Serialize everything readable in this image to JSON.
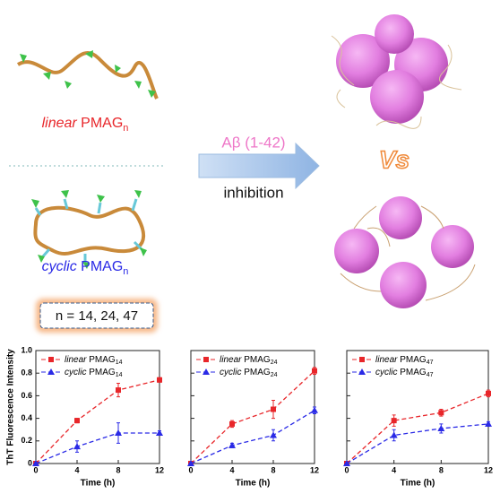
{
  "diagram": {
    "linear_label": {
      "style": "linear",
      "base": "PMAG",
      "sub": "n"
    },
    "cyclic_label": {
      "style": "cyclic",
      "base": "PMAG",
      "sub": "n"
    },
    "n_values": "n = 14, 24, 47",
    "arrow_top": "Aβ (1-42)",
    "arrow_bottom": "inhibition",
    "versus": "Vs"
  },
  "chart_data": [
    {
      "type": "line",
      "xlabel": "Time (h)",
      "ylabel": "ThT Fluorescence Intensity",
      "show_ytick_labels": true,
      "x": [
        0,
        4,
        8,
        12
      ],
      "xlim": [
        0,
        12
      ],
      "xticks": [
        0,
        4,
        8,
        12
      ],
      "ylim": [
        0,
        1
      ],
      "yticks": [
        0,
        0.2,
        0.4,
        0.6,
        0.8,
        {
          "value": 1,
          "label": "1.0"
        }
      ],
      "series": [
        {
          "name": "linear PMAG14",
          "color": "#e8262a",
          "marker": "square",
          "values": [
            0,
            0.38,
            0.65,
            0.74
          ],
          "errors": [
            0,
            0.02,
            0.06,
            0.02
          ]
        },
        {
          "name": "cyclic PMAG14",
          "color": "#2a2ae6",
          "marker": "triangle",
          "values": [
            0,
            0.15,
            0.27,
            0.27
          ],
          "errors": [
            0,
            0.05,
            0.09,
            0.02
          ]
        }
      ]
    },
    {
      "type": "line",
      "xlabel": "Time (h)",
      "show_ytick_labels": false,
      "x": [
        0,
        4,
        8,
        12
      ],
      "xlim": [
        0,
        12
      ],
      "xticks": [
        0,
        4,
        8,
        12
      ],
      "ylim": [
        0,
        1
      ],
      "yticks": [
        0,
        0.2,
        0.4,
        0.6,
        0.8,
        1
      ],
      "series": [
        {
          "name": "linear PMAG24",
          "color": "#e8262a",
          "marker": "square",
          "values": [
            0,
            0.35,
            0.48,
            0.82
          ],
          "errors": [
            0,
            0.03,
            0.08,
            0.03
          ]
        },
        {
          "name": "cyclic PMAG24",
          "color": "#2a2ae6",
          "marker": "triangle",
          "values": [
            0,
            0.16,
            0.25,
            0.47
          ],
          "errors": [
            0,
            0.02,
            0.05,
            0.03
          ]
        }
      ]
    },
    {
      "type": "line",
      "xlabel": "Time (h)",
      "show_ytick_labels": false,
      "x": [
        0,
        4,
        8,
        12
      ],
      "xlim": [
        0,
        12
      ],
      "xticks": [
        0,
        4,
        8,
        12
      ],
      "ylim": [
        0,
        1
      ],
      "yticks": [
        0,
        0.2,
        0.4,
        0.6,
        0.8,
        1
      ],
      "series": [
        {
          "name": "linear PMAG47",
          "color": "#e8262a",
          "marker": "square",
          "values": [
            0,
            0.38,
            0.45,
            0.62
          ],
          "errors": [
            0,
            0.05,
            0.03,
            0.03
          ]
        },
        {
          "name": "cyclic PMAG47",
          "color": "#2a2ae6",
          "marker": "triangle",
          "values": [
            0,
            0.25,
            0.31,
            0.35
          ],
          "errors": [
            0,
            0.05,
            0.04,
            0.02
          ]
        }
      ]
    }
  ]
}
